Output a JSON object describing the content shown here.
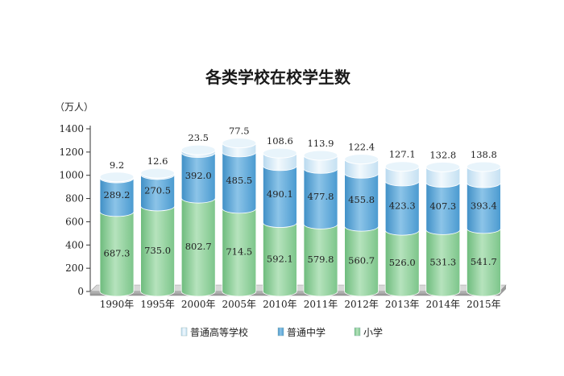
{
  "chart_data": {
    "type": "bar",
    "stacked": true,
    "title": "各类学校在校学生数",
    "unit_label": "（万人）",
    "categories": [
      "1990年",
      "1995年",
      "2000年",
      "2005年",
      "2010年",
      "2011年",
      "2012年",
      "2013年",
      "2014年",
      "2015年"
    ],
    "series": [
      {
        "name": "小学",
        "color": "#8fcf9a",
        "values": [
          687.3,
          735.0,
          802.7,
          714.5,
          592.1,
          579.8,
          560.7,
          526.0,
          531.3,
          541.7
        ]
      },
      {
        "name": "普通中学",
        "color": "#5aa6d6",
        "values": [
          289.2,
          270.5,
          392.0,
          485.5,
          490.1,
          477.8,
          455.8,
          423.3,
          407.3,
          393.4
        ]
      },
      {
        "name": "普通高等学校",
        "color": "#cfe6f4",
        "values": [
          9.2,
          12.6,
          23.5,
          77.5,
          108.6,
          113.9,
          122.4,
          127.1,
          132.8,
          138.8
        ]
      }
    ],
    "ylim": [
      0,
      1400
    ],
    "yticks": [
      0,
      200,
      400,
      600,
      800,
      1000,
      1200,
      1400
    ],
    "legend": {
      "position": "bottom",
      "order": [
        "普通高等学校",
        "普通中学",
        "小学"
      ]
    }
  }
}
